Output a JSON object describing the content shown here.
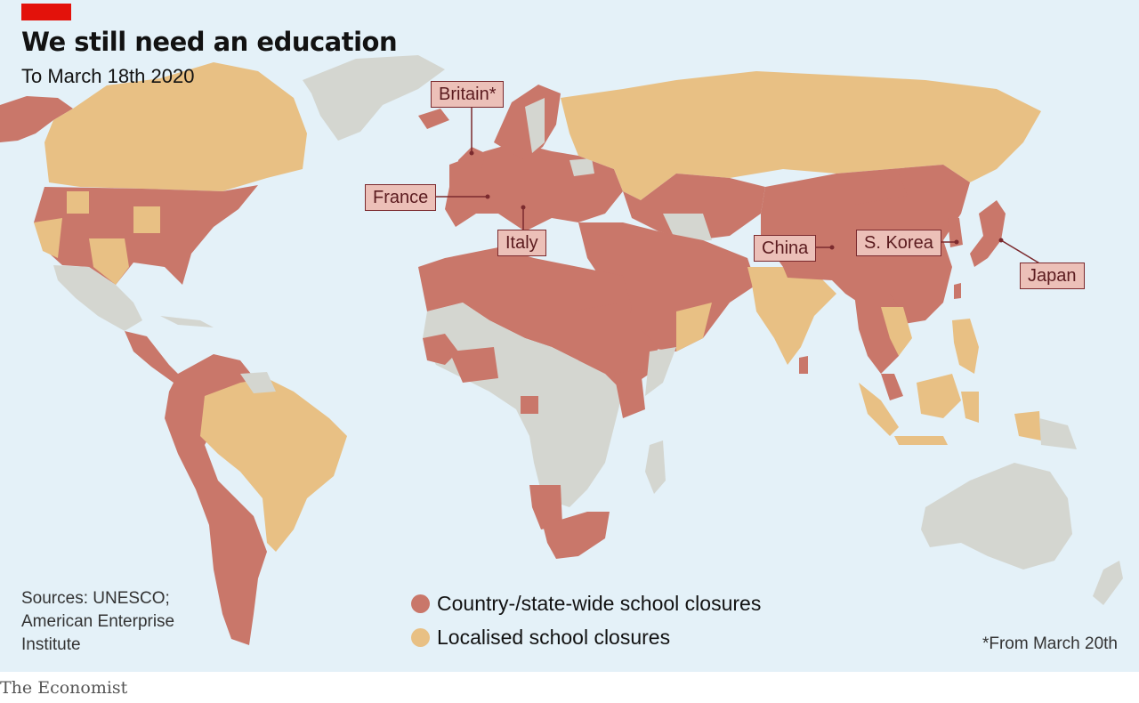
{
  "header": {
    "title": "We still need an education",
    "subtitle": "To March 18th 2020"
  },
  "colors": {
    "ocean": "#e4f1f8",
    "country_wide": "#c9776a",
    "localised": "#e8c084",
    "no_closures": "#d4d6d0",
    "accent": "#e3120b",
    "callout_border": "#7b2a2e"
  },
  "callouts": {
    "britain": "Britain*",
    "france": "France",
    "italy": "Italy",
    "china": "China",
    "skorea": "S. Korea",
    "japan": "Japan"
  },
  "legend": {
    "country_wide": "Country-/state-wide school closures",
    "localised": "Localised school closures"
  },
  "sources": {
    "line1": "Sources: UNESCO;",
    "line2": "American Enterprise",
    "line3": "Institute"
  },
  "footnote": "*From March 20th",
  "brand": "The Economist"
}
